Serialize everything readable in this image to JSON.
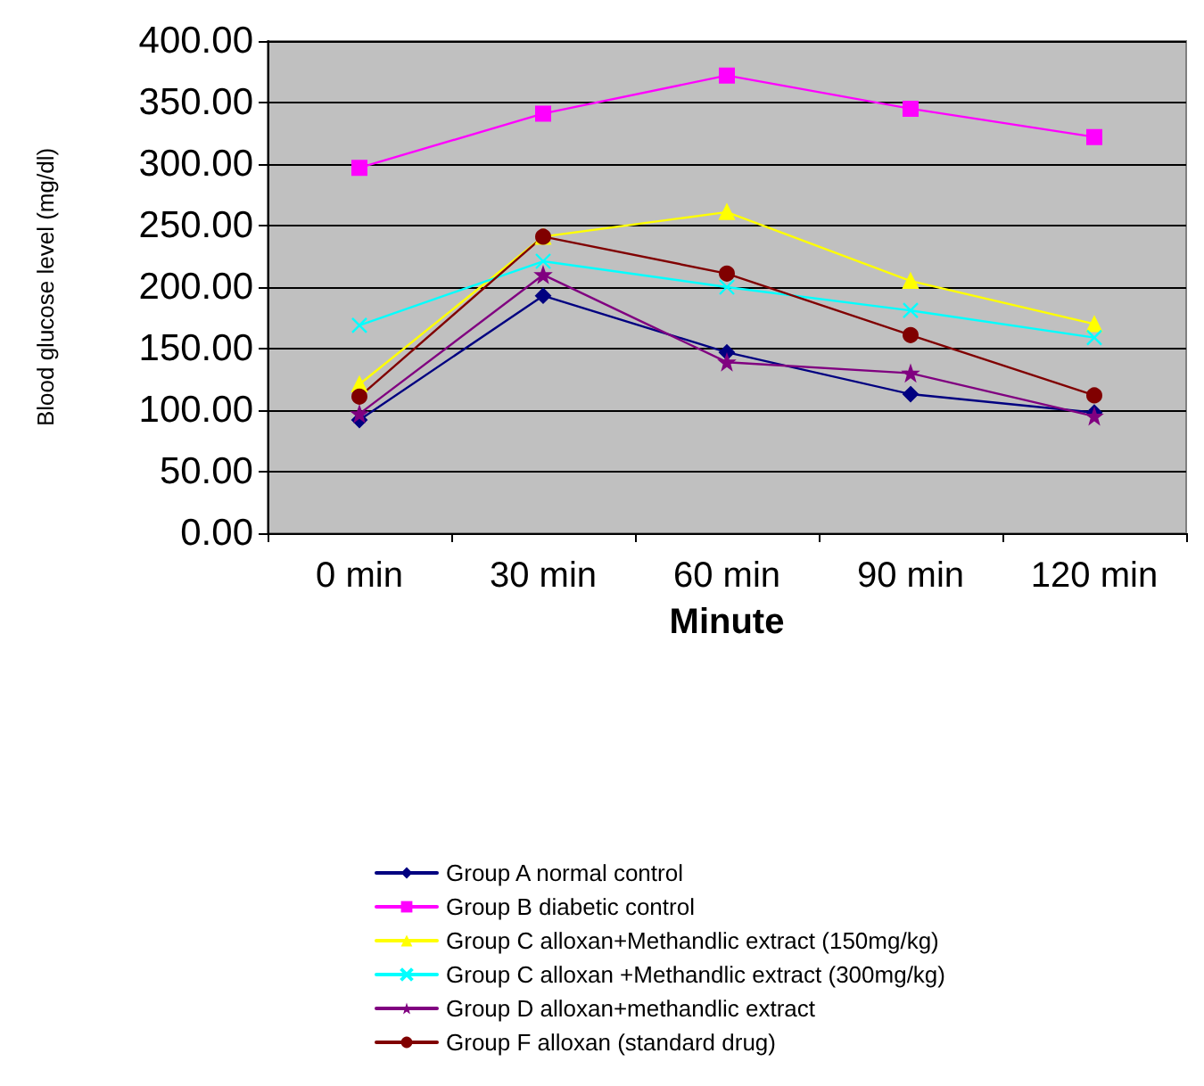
{
  "chart_data": {
    "type": "line",
    "xlabel": "Minute",
    "ylabel": "Blood glucose level (mg/dl)",
    "categories": [
      "0 min",
      "30 min",
      "60 min",
      "90 min",
      "120 min"
    ],
    "ylim": [
      0,
      400
    ],
    "yticks": [
      {
        "value": 0,
        "label": "0.00"
      },
      {
        "value": 50,
        "label": "50.00"
      },
      {
        "value": 100,
        "label": "100.00"
      },
      {
        "value": 150,
        "label": "150.00"
      },
      {
        "value": 200,
        "label": "200.00"
      },
      {
        "value": 250,
        "label": "250.00"
      },
      {
        "value": 300,
        "label": "300.00"
      },
      {
        "value": 350,
        "label": "350.00"
      },
      {
        "value": 400,
        "label": "400.00"
      }
    ],
    "grid": "y",
    "legend": "bottom",
    "line_style": "solid",
    "series": [
      {
        "name": "Group A normal control",
        "color": "#000080",
        "marker": "diamond",
        "values": [
          92,
          193,
          147,
          113,
          98
        ]
      },
      {
        "name": "Group B diabetic control",
        "color": "#ff00ff",
        "marker": "square",
        "values": [
          297,
          341,
          372,
          345,
          322
        ]
      },
      {
        "name": "Group C alloxan+Methandlic extract (150mg/kg)",
        "color": "#ffff00",
        "marker": "triangle",
        "values": [
          121,
          241,
          261,
          205,
          170
        ]
      },
      {
        "name": "Group C alloxan +Methandlic extract (300mg/kg)",
        "color": "#00ffff",
        "marker": "cross",
        "values": [
          169,
          221,
          200,
          181,
          159
        ]
      },
      {
        "name": "Group D alloxan+methandlic extract",
        "color": "#800080",
        "marker": "star",
        "values": [
          97,
          210,
          139,
          130,
          95
        ]
      },
      {
        "name": "Group F alloxan (standard drug)",
        "color": "#800000",
        "marker": "circle",
        "values": [
          111,
          241,
          211,
          161,
          112
        ]
      }
    ]
  }
}
